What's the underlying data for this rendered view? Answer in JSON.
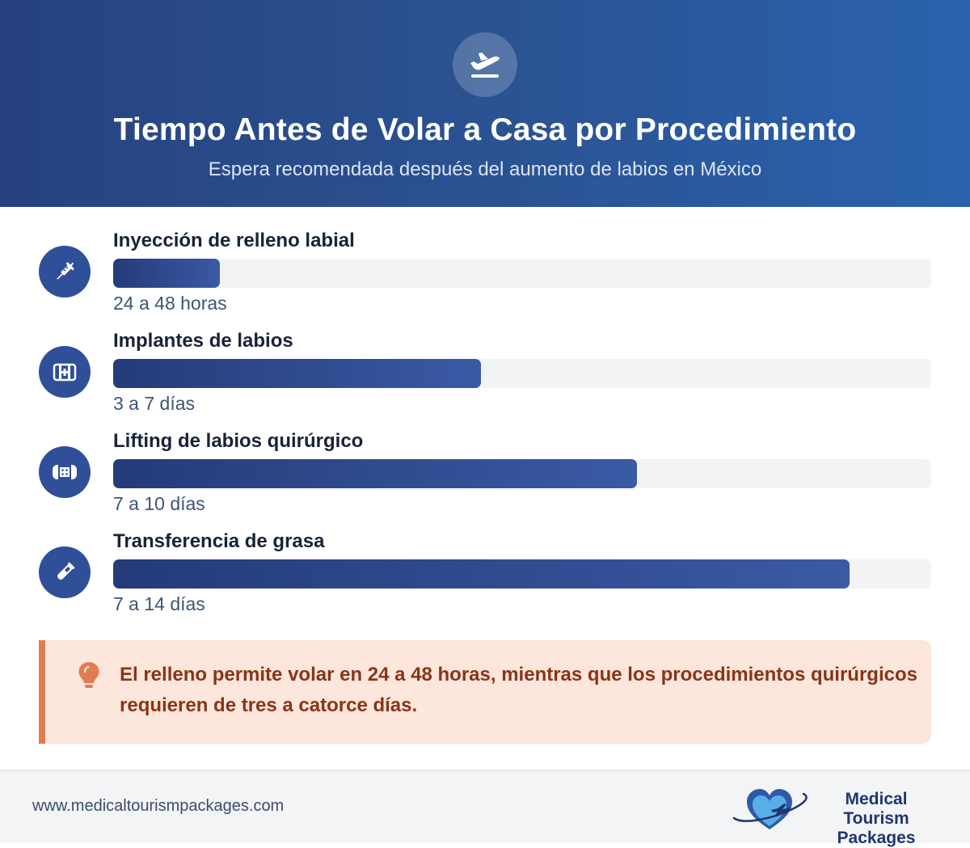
{
  "header": {
    "icon": "airplane-takeoff-icon",
    "title": "Tiempo Antes de Volar a Casa por Procedimiento",
    "subtitle": "Espera recomendada después del aumento de labios en México"
  },
  "procedures": [
    {
      "label": "Inyección de relleno labial",
      "value": "24 a 48 horas",
      "icon": "syringe-icon",
      "fill_fraction": 0.13
    },
    {
      "label": "Implantes de labios",
      "value": "3 a 7 días",
      "icon": "medical-kit-icon",
      "fill_fraction": 0.45
    },
    {
      "label": "Lifting de labios quirúrgico",
      "value": "7 a 10 días",
      "icon": "bandage-icon",
      "fill_fraction": 0.64
    },
    {
      "label": "Transferencia de grasa",
      "value": "7 a 14 días",
      "icon": "test-tube-icon",
      "fill_fraction": 0.9
    }
  ],
  "tip": {
    "icon": "lightbulb-icon",
    "text": "El relleno permite volar en 24 a 48 horas, mientras que los procedimientos quirúrgicos requieren de tres a catorce días."
  },
  "footer": {
    "url": "www.medicaltourismpackages.com",
    "logo_line1": "Medical Tourism",
    "logo_line2": "Packages"
  },
  "colors": {
    "header_start": "#26427f",
    "header_end": "#2a62ad",
    "bar_start": "#243b79",
    "bar_end": "#3a5aa4",
    "tip_background": "#fde6dc",
    "tip_accent": "#e37b52",
    "tip_text": "#8a3417"
  }
}
